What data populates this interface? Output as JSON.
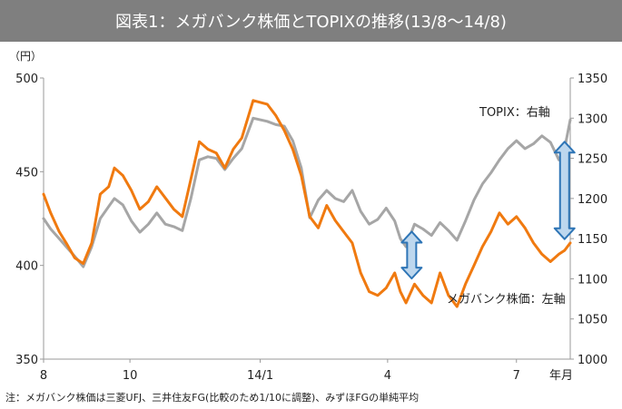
{
  "title": "図表1：メガバンク株価とTOPIXの推移(13/8～14/8)",
  "note": "注：メガバンク株価は三菱UFJ、三井住友FG(比較のため1/10に調整)、みずほFGの単純平均",
  "chart_data": {
    "type": "line",
    "y_left": {
      "unit": "（円）",
      "min": 350,
      "max": 500,
      "ticks": [
        350,
        400,
        450,
        500
      ]
    },
    "y_right": {
      "min": 1000,
      "max": 1350,
      "ticks": [
        1000,
        1050,
        1100,
        1150,
        1200,
        1250,
        1300,
        1350
      ]
    },
    "x_ticks": [
      {
        "label": "8",
        "date": "2013-08"
      },
      {
        "label": "10",
        "date": "2013-10"
      },
      {
        "label": "14/1",
        "date": "2014-01"
      },
      {
        "label": "4",
        "date": "2014-04"
      },
      {
        "label": "7",
        "date": "2014-07"
      },
      {
        "label": "年月",
        "date": "2014-08"
      }
    ],
    "grid": false,
    "series": [
      {
        "name": "メガバンク株価：左軸",
        "axis": "left",
        "color": "#f07a10",
        "points": [
          [
            "2013-08-01",
            438
          ],
          [
            "2013-08-06",
            428
          ],
          [
            "2013-08-12",
            418
          ],
          [
            "2013-08-17",
            412
          ],
          [
            "2013-08-23",
            404
          ],
          [
            "2013-08-29",
            401
          ],
          [
            "2013-09-04",
            412
          ],
          [
            "2013-09-10",
            438
          ],
          [
            "2013-09-16",
            442
          ],
          [
            "2013-09-20",
            452
          ],
          [
            "2013-09-26",
            448
          ],
          [
            "2013-10-02",
            440
          ],
          [
            "2013-10-08",
            430
          ],
          [
            "2013-10-14",
            434
          ],
          [
            "2013-10-20",
            442
          ],
          [
            "2013-10-26",
            436
          ],
          [
            "2013-11-01",
            430
          ],
          [
            "2013-11-07",
            426
          ],
          [
            "2013-11-13",
            446
          ],
          [
            "2013-11-19",
            466
          ],
          [
            "2013-11-25",
            462
          ],
          [
            "2013-12-01",
            460
          ],
          [
            "2013-12-07",
            452
          ],
          [
            "2013-12-13",
            462
          ],
          [
            "2013-12-19",
            468
          ],
          [
            "2013-12-27",
            488
          ],
          [
            "2014-01-06",
            486
          ],
          [
            "2014-01-12",
            480
          ],
          [
            "2014-01-18",
            472
          ],
          [
            "2014-01-24",
            462
          ],
          [
            "2014-01-30",
            448
          ],
          [
            "2014-02-05",
            426
          ],
          [
            "2014-02-11",
            420
          ],
          [
            "2014-02-17",
            432
          ],
          [
            "2014-02-23",
            424
          ],
          [
            "2014-03-01",
            418
          ],
          [
            "2014-03-07",
            412
          ],
          [
            "2014-03-13",
            396
          ],
          [
            "2014-03-19",
            386
          ],
          [
            "2014-03-25",
            384
          ],
          [
            "2014-03-31",
            388
          ],
          [
            "2014-04-06",
            396
          ],
          [
            "2014-04-10",
            386
          ],
          [
            "2014-04-14",
            380
          ],
          [
            "2014-04-20",
            390
          ],
          [
            "2014-04-26",
            384
          ],
          [
            "2014-05-02",
            380
          ],
          [
            "2014-05-08",
            396
          ],
          [
            "2014-05-14",
            384
          ],
          [
            "2014-05-20",
            378
          ],
          [
            "2014-05-26",
            390
          ],
          [
            "2014-06-01",
            400
          ],
          [
            "2014-06-07",
            410
          ],
          [
            "2014-06-13",
            418
          ],
          [
            "2014-06-19",
            428
          ],
          [
            "2014-06-25",
            422
          ],
          [
            "2014-07-01",
            426
          ],
          [
            "2014-07-07",
            420
          ],
          [
            "2014-07-13",
            412
          ],
          [
            "2014-07-19",
            406
          ],
          [
            "2014-07-25",
            402
          ],
          [
            "2014-07-31",
            406
          ],
          [
            "2014-08-04",
            408
          ],
          [
            "2014-08-08",
            412
          ]
        ]
      },
      {
        "name": "TOPIX：右軸",
        "axis": "right",
        "color": "#a6a6a6",
        "points": [
          [
            "2013-08-01",
            1175
          ],
          [
            "2013-08-06",
            1162
          ],
          [
            "2013-08-12",
            1150
          ],
          [
            "2013-08-17",
            1140
          ],
          [
            "2013-08-23",
            1128
          ],
          [
            "2013-08-29",
            1115
          ],
          [
            "2013-09-04",
            1140
          ],
          [
            "2013-09-10",
            1175
          ],
          [
            "2013-09-16",
            1190
          ],
          [
            "2013-09-20",
            1200
          ],
          [
            "2013-09-26",
            1192
          ],
          [
            "2013-10-02",
            1172
          ],
          [
            "2013-10-08",
            1158
          ],
          [
            "2013-10-14",
            1168
          ],
          [
            "2013-10-20",
            1182
          ],
          [
            "2013-10-26",
            1168
          ],
          [
            "2013-11-01",
            1165
          ],
          [
            "2013-11-07",
            1160
          ],
          [
            "2013-11-13",
            1200
          ],
          [
            "2013-11-19",
            1248
          ],
          [
            "2013-11-25",
            1252
          ],
          [
            "2013-12-01",
            1250
          ],
          [
            "2013-12-07",
            1236
          ],
          [
            "2013-12-13",
            1250
          ],
          [
            "2013-12-19",
            1262
          ],
          [
            "2013-12-27",
            1300
          ],
          [
            "2014-01-06",
            1296
          ],
          [
            "2014-01-12",
            1292
          ],
          [
            "2014-01-18",
            1290
          ],
          [
            "2014-01-24",
            1272
          ],
          [
            "2014-01-30",
            1238
          ],
          [
            "2014-02-05",
            1176
          ],
          [
            "2014-02-11",
            1198
          ],
          [
            "2014-02-17",
            1210
          ],
          [
            "2014-02-23",
            1200
          ],
          [
            "2014-03-01",
            1196
          ],
          [
            "2014-03-07",
            1210
          ],
          [
            "2014-03-13",
            1184
          ],
          [
            "2014-03-19",
            1168
          ],
          [
            "2014-03-25",
            1174
          ],
          [
            "2014-03-31",
            1188
          ],
          [
            "2014-04-06",
            1172
          ],
          [
            "2014-04-10",
            1150
          ],
          [
            "2014-04-14",
            1140
          ],
          [
            "2014-04-20",
            1168
          ],
          [
            "2014-04-26",
            1162
          ],
          [
            "2014-05-02",
            1154
          ],
          [
            "2014-05-08",
            1170
          ],
          [
            "2014-05-14",
            1160
          ],
          [
            "2014-05-20",
            1148
          ],
          [
            "2014-05-26",
            1172
          ],
          [
            "2014-06-01",
            1198
          ],
          [
            "2014-06-07",
            1218
          ],
          [
            "2014-06-13",
            1232
          ],
          [
            "2014-06-19",
            1248
          ],
          [
            "2014-06-25",
            1262
          ],
          [
            "2014-07-01",
            1272
          ],
          [
            "2014-07-07",
            1262
          ],
          [
            "2014-07-13",
            1268
          ],
          [
            "2014-07-19",
            1278
          ],
          [
            "2014-07-25",
            1270
          ],
          [
            "2014-07-31",
            1248
          ],
          [
            "2014-08-04",
            1262
          ],
          [
            "2014-08-08",
            1298
          ]
        ]
      }
    ],
    "annotations": [
      {
        "label": "TOPIX：右軸",
        "series": "TOPIX：右軸"
      },
      {
        "label": "メガバンク株価：左軸",
        "series": "メガバンク株価：左軸"
      }
    ],
    "gap_arrows": [
      {
        "date": "2014-04-18",
        "left_top": 418,
        "left_bottom": 393,
        "color": "#2e75b6"
      },
      {
        "date": "2014-08-04",
        "left_top": 466,
        "left_bottom": 414,
        "color": "#2e75b6"
      }
    ]
  }
}
